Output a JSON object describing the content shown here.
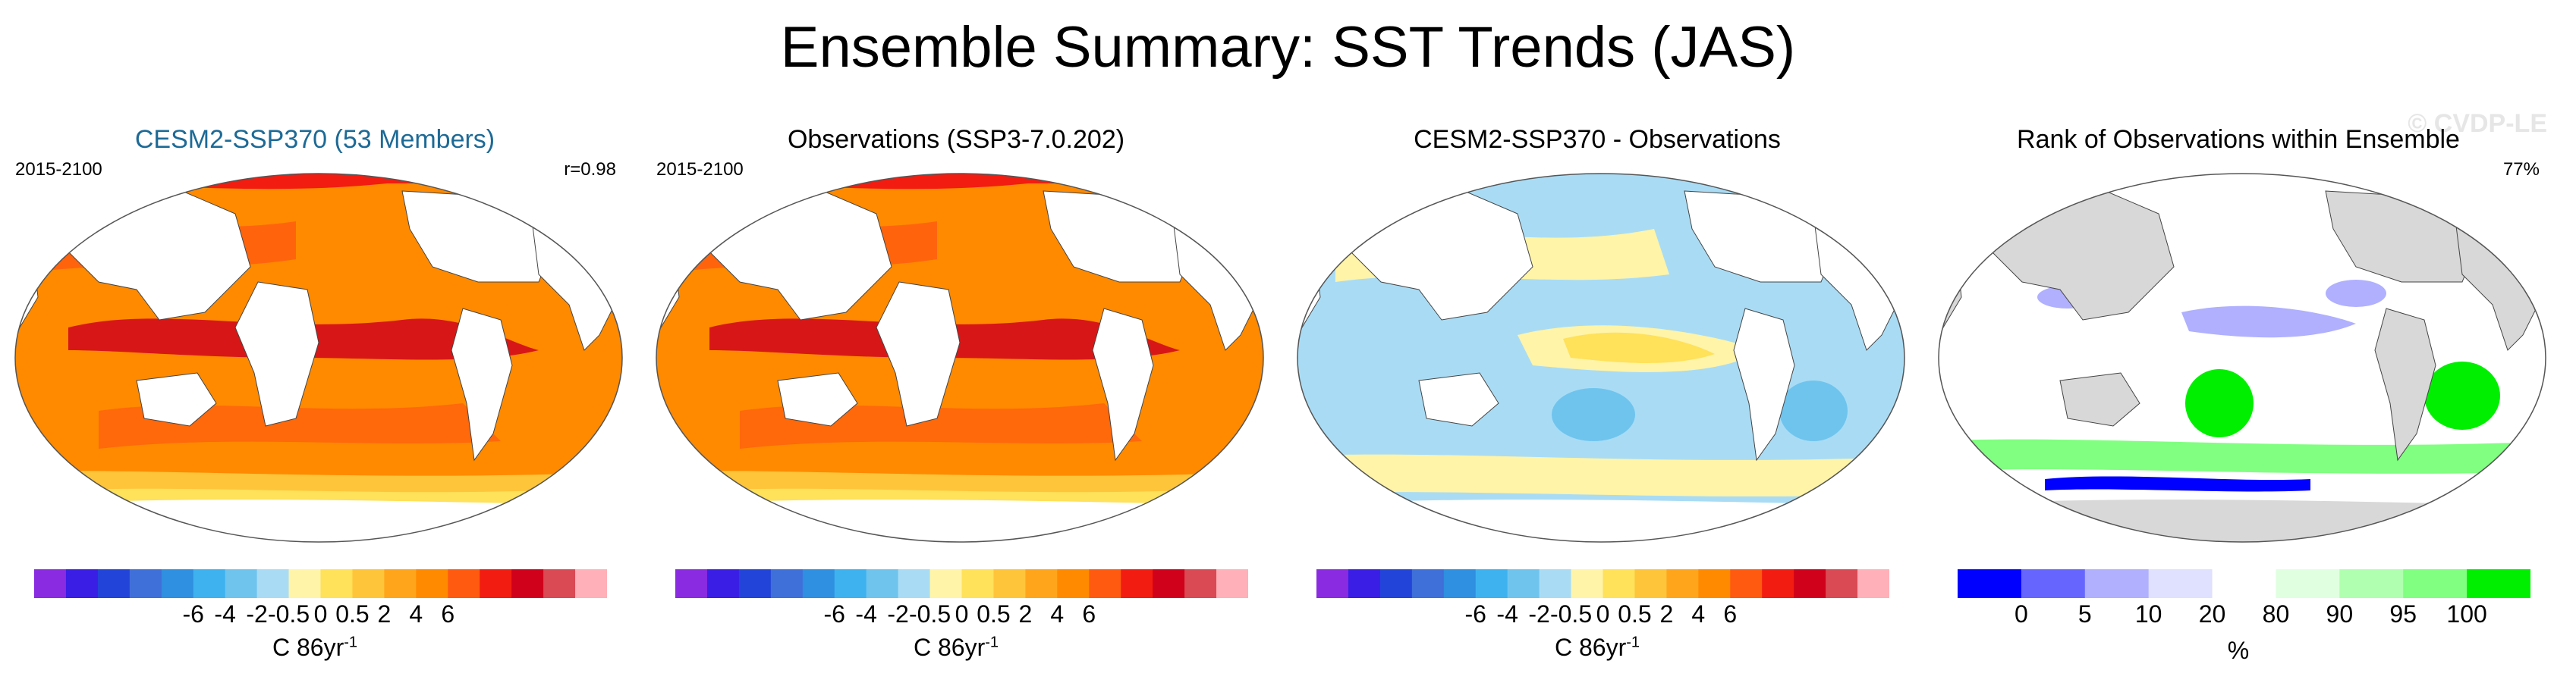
{
  "title": "Ensemble Summary: SST Trends (JAS)",
  "panels": [
    {
      "title": "CESM2-SSP370 (53 Members)",
      "period": "2015-2100",
      "stat": "r=0.98",
      "watermark": "",
      "units": "C 86yr",
      "units_sup": "-1",
      "ticks": [
        "-6",
        "-4",
        "-2",
        "-0.5",
        "0",
        "0.5",
        "2",
        "4",
        "6"
      ]
    },
    {
      "title": "Observations (SSP3-7.0.202)",
      "period": "2015-2100",
      "stat": "",
      "watermark": "",
      "units": "C 86yr",
      "units_sup": "-1",
      "ticks": [
        "-6",
        "-4",
        "-2",
        "-0.5",
        "0",
        "0.5",
        "2",
        "4",
        "6"
      ]
    },
    {
      "title": "CESM2-SSP370 - Observations",
      "period": "",
      "stat": "",
      "watermark": "",
      "units": "C 86yr",
      "units_sup": "-1",
      "ticks": [
        "-6",
        "-4",
        "-2",
        "-0.5",
        "0",
        "0.5",
        "2",
        "4",
        "6"
      ]
    },
    {
      "title": "Rank of Observations within Ensemble",
      "period": "",
      "stat": "77%",
      "watermark": "© CVDP-LE",
      "units": "%",
      "units_sup": "",
      "ticks": [
        "0",
        "5",
        "10",
        "20",
        "80",
        "90",
        "95",
        "100"
      ]
    }
  ],
  "colors": {
    "sst_scale": [
      "#8a2be2",
      "#3a1ee6",
      "#2244d8",
      "#3f6fd9",
      "#2f8fe0",
      "#3db2ef",
      "#6fc4ee",
      "#a9dcf4",
      "#fff4a8",
      "#ffe15a",
      "#ffc53a",
      "#ffa51c",
      "#ff8a00",
      "#ff5a10",
      "#f21c10",
      "#d0021b",
      "#d94a55",
      "#ffb0b8"
    ],
    "rank_scale": [
      "#0000ff",
      "#6666ff",
      "#b0b0ff",
      "#e0e0ff",
      "#ffffff",
      "#e0ffe0",
      "#b0ffb0",
      "#80ff80",
      "#00ee00"
    ],
    "land": "#ffffff",
    "land_gray": "#d8d8d8"
  }
}
